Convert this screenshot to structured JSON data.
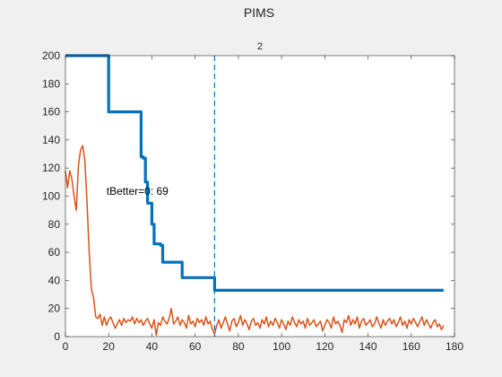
{
  "figure_title": "PIMS",
  "chart_data": {
    "type": "line",
    "title": "2",
    "xlabel": "",
    "ylabel": "",
    "xlim": [
      0,
      180
    ],
    "ylim": [
      0,
      200
    ],
    "xticks": [
      "0",
      "20",
      "40",
      "60",
      "80",
      "100",
      "120",
      "140",
      "160",
      "180"
    ],
    "yticks": [
      "0",
      "20",
      "40",
      "60",
      "80",
      "100",
      "120",
      "140",
      "160",
      "180",
      "200"
    ],
    "grid": false,
    "legend": "none",
    "annotation": {
      "text": "tBetter=0: 69",
      "x": 19,
      "y": 101
    },
    "vline": {
      "x": 69,
      "style": "dashed",
      "color": "#0072bd"
    },
    "series": [
      {
        "color": "#0072bd",
        "kind": "step",
        "x": [
          0,
          19,
          20,
          34,
          35,
          36,
          37,
          38,
          40,
          41,
          44,
          45,
          53,
          54,
          68,
          69,
          175
        ],
        "y": [
          200,
          200,
          160,
          160,
          128,
          127,
          110,
          95,
          80,
          66,
          65,
          53,
          53,
          42,
          42,
          33,
          33
        ]
      },
      {
        "color": "#d95319",
        "kind": "line",
        "x": [
          0,
          1,
          2,
          3,
          4,
          5,
          6,
          7,
          8,
          9,
          10,
          11,
          12,
          13,
          14,
          15,
          16,
          17,
          18,
          19,
          20,
          21,
          22,
          23,
          24,
          25,
          26,
          27,
          28,
          29,
          30,
          31,
          32,
          33,
          34,
          35,
          36,
          37,
          38,
          39,
          40,
          41,
          42,
          43,
          44,
          45,
          46,
          47,
          48,
          49,
          50,
          51,
          52,
          53,
          54,
          55,
          56,
          57,
          58,
          59,
          60,
          61,
          62,
          63,
          64,
          65,
          66,
          67,
          68,
          69,
          70,
          71,
          72,
          73,
          74,
          75,
          76,
          77,
          78,
          79,
          80,
          81,
          82,
          83,
          84,
          85,
          86,
          87,
          88,
          89,
          90,
          91,
          92,
          93,
          94,
          95,
          96,
          97,
          98,
          99,
          100,
          101,
          102,
          103,
          104,
          105,
          106,
          107,
          108,
          109,
          110,
          111,
          112,
          113,
          114,
          115,
          116,
          117,
          118,
          119,
          120,
          121,
          122,
          123,
          124,
          125,
          126,
          127,
          128,
          129,
          130,
          131,
          132,
          133,
          134,
          135,
          136,
          137,
          138,
          139,
          140,
          141,
          142,
          143,
          144,
          145,
          146,
          147,
          148,
          149,
          150,
          151,
          152,
          153,
          154,
          155,
          156,
          157,
          158,
          159,
          160,
          161,
          162,
          163,
          164,
          165,
          166,
          167,
          168,
          169,
          170,
          171,
          172,
          173,
          174,
          175
        ],
        "y": [
          118,
          106,
          118,
          112,
          100,
          90,
          122,
          133,
          136,
          125,
          95,
          60,
          34,
          28,
          14,
          13,
          16,
          8,
          14,
          8,
          12,
          14,
          10,
          6,
          9,
          12,
          8,
          13,
          10,
          12,
          11,
          14,
          9,
          13,
          10,
          12,
          8,
          11,
          13,
          9,
          6,
          12,
          1,
          10,
          8,
          14,
          11,
          9,
          13,
          20,
          9,
          11,
          14,
          8,
          12,
          10,
          6,
          15,
          9,
          11,
          7,
          13,
          10,
          12,
          8,
          14,
          9,
          11,
          5,
          2,
          8,
          12,
          6,
          10,
          14,
          9,
          4,
          11,
          13,
          7,
          10,
          15,
          8,
          12,
          9,
          5,
          11,
          13,
          8,
          10,
          6,
          12,
          9,
          14,
          7,
          11,
          8,
          13,
          10,
          6,
          12,
          9,
          5,
          11,
          8,
          14,
          10,
          7,
          12,
          9,
          11,
          6,
          13,
          8,
          10,
          12,
          7,
          9,
          11,
          4,
          8,
          12,
          10,
          6,
          14,
          9,
          11,
          8,
          3,
          12,
          10,
          15,
          8,
          12,
          9,
          14,
          6,
          11,
          13,
          8,
          10,
          12,
          7,
          9,
          14,
          10,
          6,
          12,
          8,
          11,
          13,
          9,
          12,
          7,
          10,
          14,
          8,
          11,
          6,
          12,
          9,
          13,
          10,
          7,
          11,
          14,
          8,
          12,
          9,
          6,
          10,
          12,
          7,
          9,
          5,
          8
        ]
      }
    ]
  }
}
